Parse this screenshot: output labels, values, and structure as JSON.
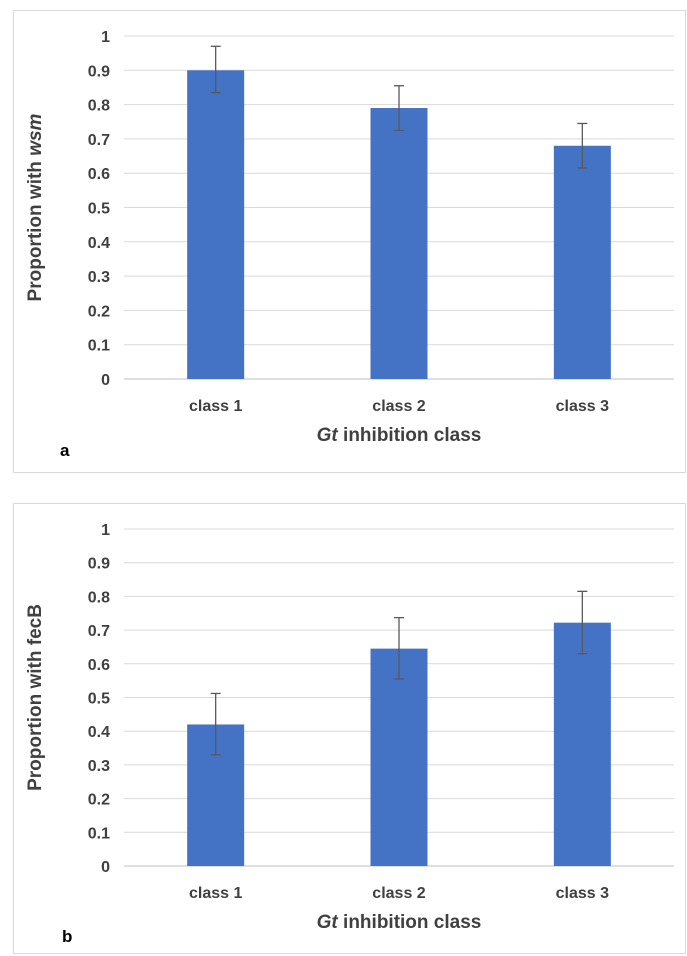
{
  "charts": [
    {
      "panel_label": "a",
      "chart_data": {
        "type": "bar",
        "categories": [
          "class 1",
          "class 2",
          "class 3"
        ],
        "values": [
          0.9,
          0.79,
          0.68
        ],
        "error_bars": {
          "upper": [
            0.97,
            0.855,
            0.745
          ],
          "lower": [
            0.835,
            0.725,
            0.615
          ]
        },
        "y_ticks": [
          "0",
          "0.1",
          "0.2",
          "0.3",
          "0.4",
          "0.5",
          "0.6",
          "0.7",
          "0.8",
          "0.9",
          "1"
        ],
        "ylim": [
          0,
          1
        ],
        "xlabel_italic": "Gt",
        "xlabel_rest": " inhibition class",
        "ylabel_plain": "Proportion with ",
        "ylabel_italic": "wsm",
        "grid": true,
        "bar_color": "#4472c4"
      }
    },
    {
      "panel_label": "b",
      "chart_data": {
        "type": "bar",
        "categories": [
          "class 1",
          "class 2",
          "class 3"
        ],
        "values": [
          0.42,
          0.645,
          0.722
        ],
        "error_bars": {
          "upper": [
            0.512,
            0.737,
            0.815
          ],
          "lower": [
            0.33,
            0.555,
            0.63
          ]
        },
        "y_ticks": [
          "0",
          "0.1",
          "0.2",
          "0.3",
          "0.4",
          "0.5",
          "0.6",
          "0.7",
          "0.8",
          "0.9",
          "1"
        ],
        "ylim": [
          0,
          1
        ],
        "xlabel_italic": "Gt",
        "xlabel_rest": " inhibition class",
        "ylabel_plain": "Proportion with fecB",
        "ylabel_italic": "",
        "grid": true,
        "bar_color": "#4472c4"
      }
    }
  ]
}
